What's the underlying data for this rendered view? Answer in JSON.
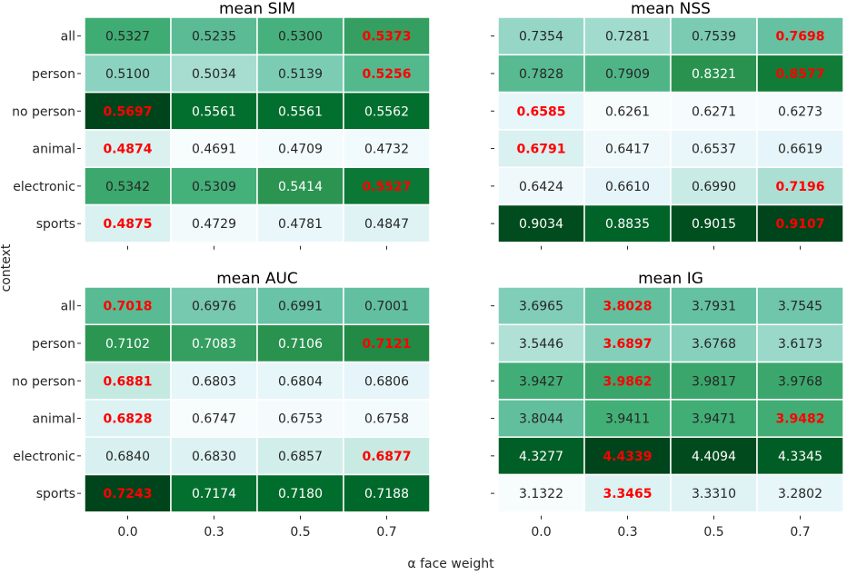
{
  "figure": {
    "ylabel": "context",
    "xlabel": "α face weight"
  },
  "chart_data": [
    {
      "type": "heatmap",
      "title": "mean SIM",
      "rows": [
        "all",
        "person",
        "no person",
        "animal",
        "electronic",
        "sports"
      ],
      "columns": [
        "0.0",
        "0.3",
        "0.5",
        "0.7"
      ],
      "values": [
        [
          0.5327,
          0.5235,
          0.53,
          0.5373
        ],
        [
          0.51,
          0.5034,
          0.5139,
          0.5256
        ],
        [
          0.5697,
          0.5561,
          0.5561,
          0.5562
        ],
        [
          0.4874,
          0.4691,
          0.4709,
          0.4732
        ],
        [
          0.5342,
          0.5309,
          0.5414,
          0.5527
        ],
        [
          0.4875,
          0.4729,
          0.4781,
          0.4847
        ]
      ],
      "labels": [
        [
          "0.5327",
          "0.5235",
          "0.5300",
          "0.5373"
        ],
        [
          "0.5100",
          "0.5034",
          "0.5139",
          "0.5256"
        ],
        [
          "0.5697",
          "0.5561",
          "0.5561",
          "0.5562"
        ],
        [
          "0.4874",
          "0.4691",
          "0.4709",
          "0.4732"
        ],
        [
          "0.5342",
          "0.5309",
          "0.5414",
          "0.5527"
        ],
        [
          "0.4875",
          "0.4729",
          "0.4781",
          "0.4847"
        ]
      ],
      "highlight": [
        [
          0,
          3
        ],
        [
          1,
          3
        ],
        [
          2,
          0
        ],
        [
          3,
          0
        ],
        [
          4,
          3
        ],
        [
          5,
          0
        ]
      ],
      "colormap": "BuGn",
      "show_x_ticklabels": false
    },
    {
      "type": "heatmap",
      "title": "mean NSS",
      "rows": [
        "all",
        "person",
        "no person",
        "animal",
        "electronic",
        "sports"
      ],
      "columns": [
        "0.0",
        "0.3",
        "0.5",
        "0.7"
      ],
      "values": [
        [
          0.7354,
          0.7281,
          0.7539,
          0.7698
        ],
        [
          0.7828,
          0.7909,
          0.8321,
          0.8577
        ],
        [
          0.6585,
          0.6261,
          0.6271,
          0.6273
        ],
        [
          0.6791,
          0.6417,
          0.6537,
          0.6619
        ],
        [
          0.6424,
          0.661,
          0.699,
          0.7196
        ],
        [
          0.9034,
          0.8835,
          0.9015,
          0.9107
        ]
      ],
      "labels": [
        [
          "0.7354",
          "0.7281",
          "0.7539",
          "0.7698"
        ],
        [
          "0.7828",
          "0.7909",
          "0.8321",
          "0.8577"
        ],
        [
          "0.6585",
          "0.6261",
          "0.6271",
          "0.6273"
        ],
        [
          "0.6791",
          "0.6417",
          "0.6537",
          "0.6619"
        ],
        [
          "0.6424",
          "0.6610",
          "0.6990",
          "0.7196"
        ],
        [
          "0.9034",
          "0.8835",
          "0.9015",
          "0.9107"
        ]
      ],
      "highlight": [
        [
          0,
          3
        ],
        [
          1,
          3
        ],
        [
          2,
          0
        ],
        [
          3,
          0
        ],
        [
          4,
          3
        ],
        [
          5,
          3
        ]
      ],
      "colormap": "BuGn",
      "show_x_ticklabels": false
    },
    {
      "type": "heatmap",
      "title": "mean AUC",
      "rows": [
        "all",
        "person",
        "no person",
        "animal",
        "electronic",
        "sports"
      ],
      "columns": [
        "0.0",
        "0.3",
        "0.5",
        "0.7"
      ],
      "values": [
        [
          0.7018,
          0.6976,
          0.6991,
          0.7001
        ],
        [
          0.7102,
          0.7083,
          0.7106,
          0.7121
        ],
        [
          0.6881,
          0.6803,
          0.6804,
          0.6806
        ],
        [
          0.6828,
          0.6747,
          0.6753,
          0.6758
        ],
        [
          0.684,
          0.683,
          0.6857,
          0.6877
        ],
        [
          0.7243,
          0.7174,
          0.718,
          0.7188
        ]
      ],
      "labels": [
        [
          "0.7018",
          "0.6976",
          "0.6991",
          "0.7001"
        ],
        [
          "0.7102",
          "0.7083",
          "0.7106",
          "0.7121"
        ],
        [
          "0.6881",
          "0.6803",
          "0.6804",
          "0.6806"
        ],
        [
          "0.6828",
          "0.6747",
          "0.6753",
          "0.6758"
        ],
        [
          "0.6840",
          "0.6830",
          "0.6857",
          "0.6877"
        ],
        [
          "0.7243",
          "0.7174",
          "0.7180",
          "0.7188"
        ]
      ],
      "highlight": [
        [
          0,
          0
        ],
        [
          1,
          3
        ],
        [
          2,
          0
        ],
        [
          3,
          0
        ],
        [
          4,
          3
        ],
        [
          5,
          0
        ]
      ],
      "colormap": "BuGn",
      "show_x_ticklabels": true
    },
    {
      "type": "heatmap",
      "title": "mean IG",
      "rows": [
        "all",
        "person",
        "no person",
        "animal",
        "electronic",
        "sports"
      ],
      "columns": [
        "0.0",
        "0.3",
        "0.5",
        "0.7"
      ],
      "values": [
        [
          3.6965,
          3.8028,
          3.7931,
          3.7545
        ],
        [
          3.5446,
          3.6897,
          3.6768,
          3.6173
        ],
        [
          3.9427,
          3.9862,
          3.9817,
          3.9768
        ],
        [
          3.8044,
          3.9411,
          3.9471,
          3.9482
        ],
        [
          4.3277,
          4.4339,
          4.4094,
          4.3345
        ],
        [
          3.1322,
          3.3465,
          3.331,
          3.2802
        ]
      ],
      "labels": [
        [
          "3.6965",
          "3.8028",
          "3.7931",
          "3.7545"
        ],
        [
          "3.5446",
          "3.6897",
          "3.6768",
          "3.6173"
        ],
        [
          "3.9427",
          "3.9862",
          "3.9817",
          "3.9768"
        ],
        [
          "3.8044",
          "3.9411",
          "3.9471",
          "3.9482"
        ],
        [
          "4.3277",
          "4.4339",
          "4.4094",
          "4.3345"
        ],
        [
          "3.1322",
          "3.3465",
          "3.3310",
          "3.2802"
        ]
      ],
      "highlight": [
        [
          0,
          1
        ],
        [
          1,
          1
        ],
        [
          2,
          1
        ],
        [
          3,
          3
        ],
        [
          4,
          1
        ],
        [
          5,
          1
        ]
      ],
      "colormap": "BuGn",
      "show_x_ticklabels": true
    }
  ],
  "colors": {
    "highlight_text": "#ff0000",
    "dark_text": "#262626",
    "light_text": "#ffffff",
    "cell_border": "#ffffff"
  }
}
